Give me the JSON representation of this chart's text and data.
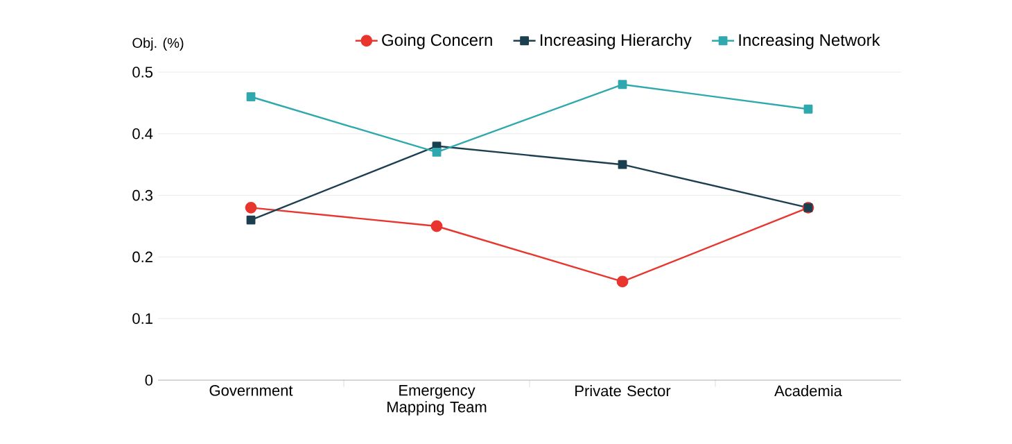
{
  "chart_data": {
    "type": "line",
    "ylabel": "Obj. (%)",
    "categories": [
      "Government",
      "Emergency Mapping Team",
      "Private Sector",
      "Academia"
    ],
    "series": [
      {
        "name": "Going Concern",
        "color": "#e8352e",
        "marker": "circle",
        "values": [
          0.28,
          0.25,
          0.16,
          0.28
        ]
      },
      {
        "name": "Increasing Hierarchy",
        "color": "#1c3f50",
        "marker": "square",
        "values": [
          0.26,
          0.38,
          0.35,
          0.28
        ]
      },
      {
        "name": "Increasing Network",
        "color": "#2fa8ae",
        "marker": "square",
        "values": [
          0.46,
          0.37,
          0.48,
          0.44
        ]
      }
    ],
    "ylim": [
      0,
      0.5
    ],
    "yticks": [
      0,
      0.1,
      0.2,
      0.3,
      0.4,
      0.5
    ],
    "grid": "y",
    "legend": "top",
    "line_style": "solid"
  }
}
